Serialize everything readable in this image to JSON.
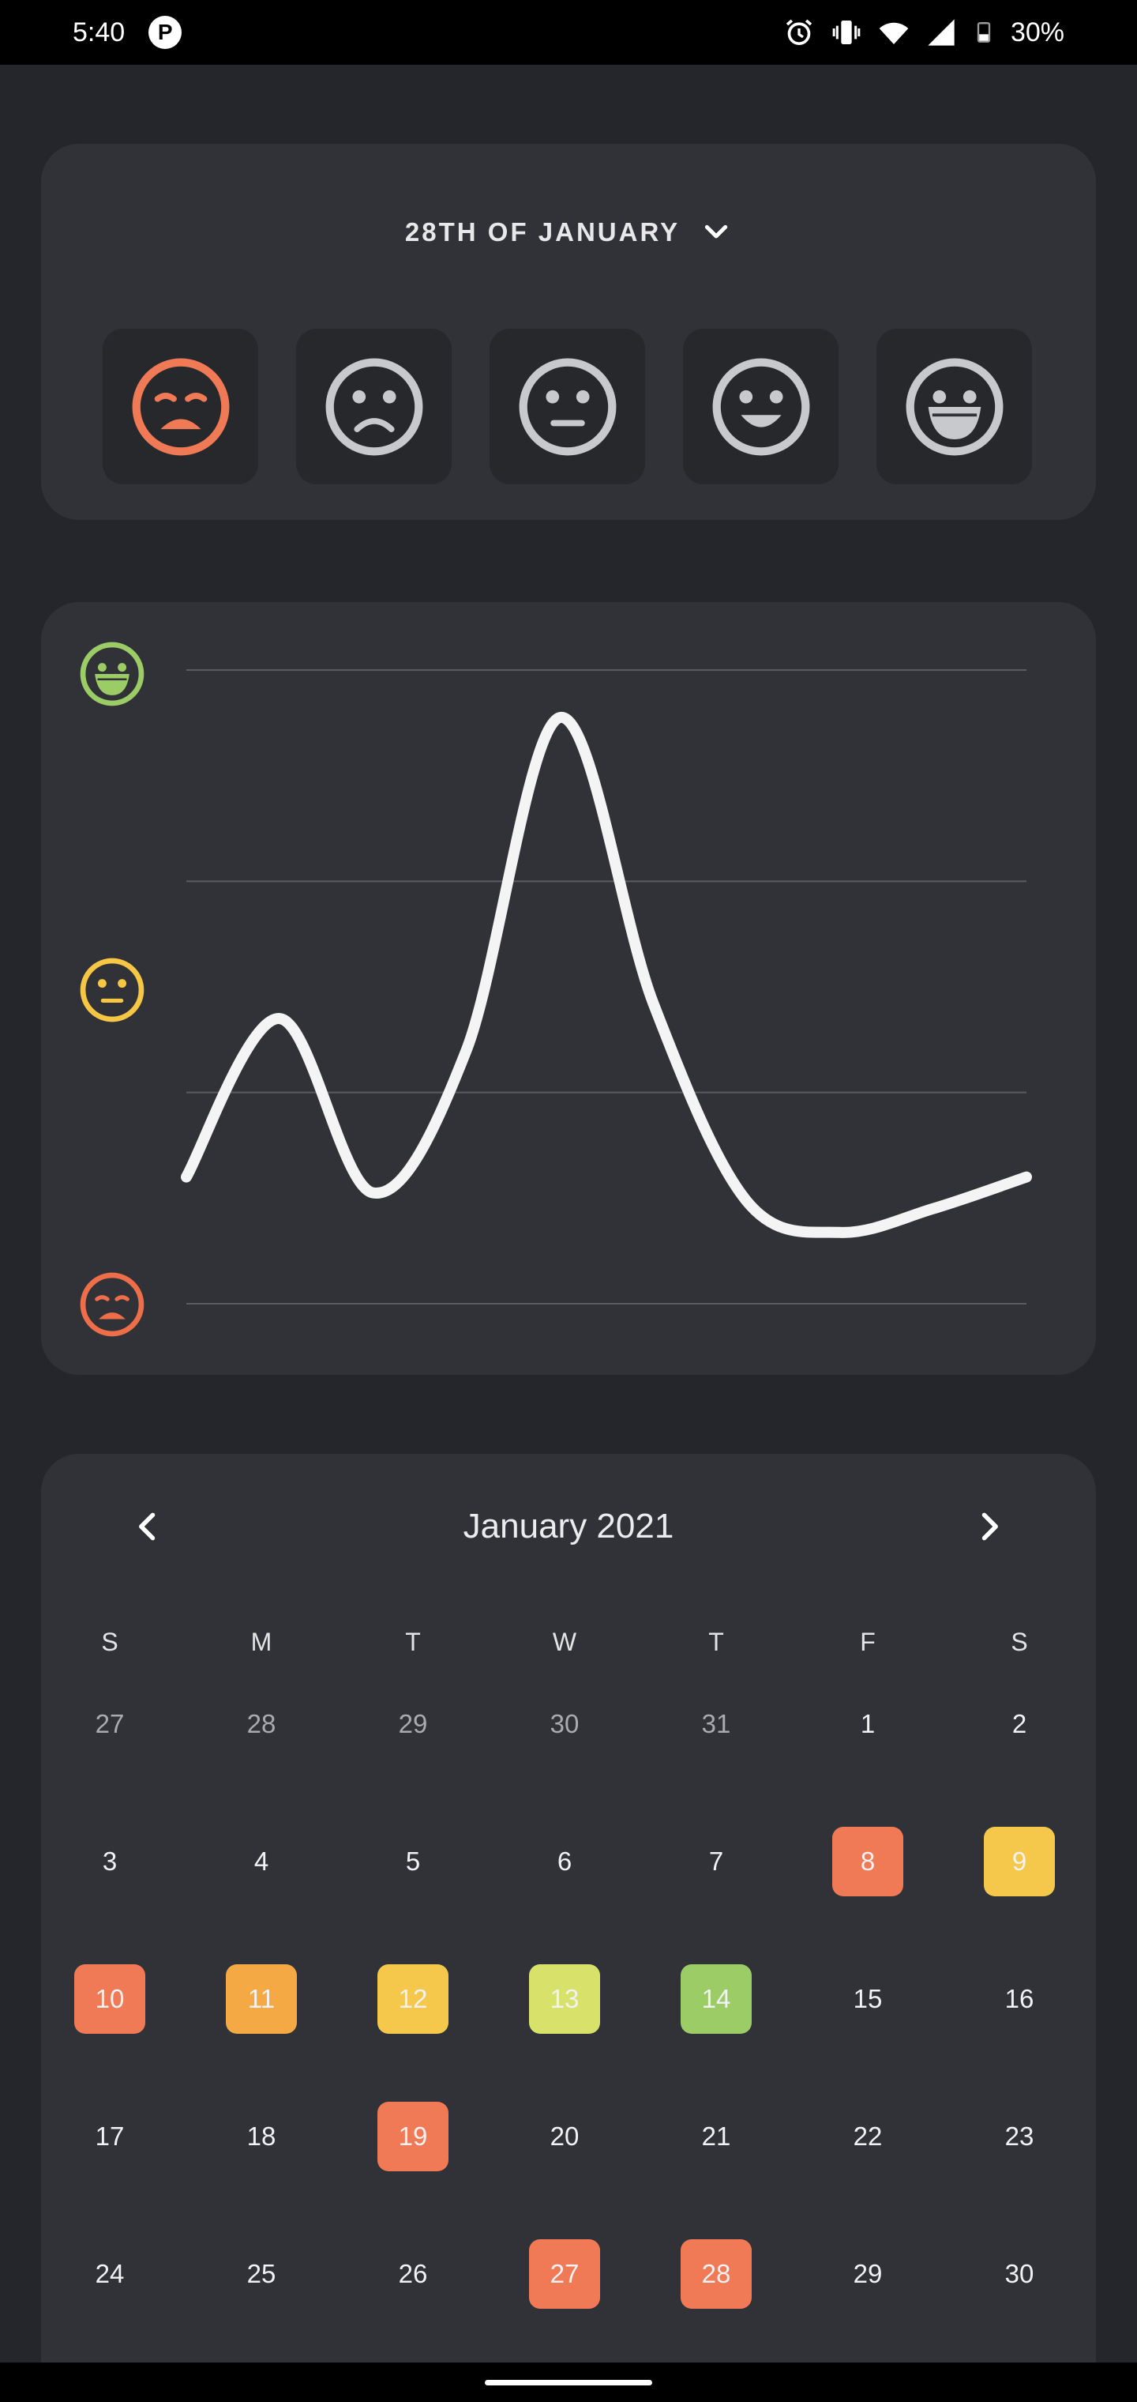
{
  "status_bar": {
    "time": "5:40",
    "app_badge": "P",
    "battery": "30%",
    "icons": [
      "alarm-icon",
      "vibrate-icon",
      "wifi-icon",
      "cell-signal-icon",
      "battery-icon"
    ]
  },
  "mood_picker": {
    "date_label": "28TH OF JANUARY",
    "selected_index": 0,
    "moods": [
      {
        "name": "awful",
        "icon": "awful-face-icon"
      },
      {
        "name": "bad",
        "icon": "sad-face-icon"
      },
      {
        "name": "meh",
        "icon": "neutral-face-icon"
      },
      {
        "name": "good",
        "icon": "smile-face-icon"
      },
      {
        "name": "great",
        "icon": "laugh-face-icon"
      }
    ],
    "colors": {
      "selected": "#f07a55",
      "unselected": "#c8c9cd"
    }
  },
  "chart_data": {
    "type": "line",
    "title": "",
    "xlabel": "",
    "ylabel": "",
    "y_icons": [
      "laugh-face-icon",
      "neutral-face-icon",
      "awful-face-icon"
    ],
    "ylim": [
      1,
      5
    ],
    "grid": true,
    "x": [
      1,
      2,
      3,
      4,
      5,
      6,
      7,
      8,
      9,
      10
    ],
    "values": [
      1.8,
      2.8,
      1.7,
      2.6,
      4.7,
      2.9,
      1.65,
      1.45,
      1.6,
      1.8
    ],
    "colors": {
      "line": "#f4f4f4",
      "great": "#9ccc65",
      "meh": "#f6c744",
      "awful": "#ee6e4a"
    }
  },
  "calendar": {
    "month_label": "January  2021",
    "weekdays": [
      "S",
      "M",
      "T",
      "W",
      "T",
      "F",
      "S"
    ],
    "weeks": [
      [
        {
          "d": "27",
          "muted": true
        },
        {
          "d": "28",
          "muted": true
        },
        {
          "d": "29",
          "muted": true
        },
        {
          "d": "30",
          "muted": true
        },
        {
          "d": "31",
          "muted": true
        },
        {
          "d": "1"
        },
        {
          "d": "2"
        }
      ],
      [
        {
          "d": "3"
        },
        {
          "d": "4"
        },
        {
          "d": "5"
        },
        {
          "d": "6"
        },
        {
          "d": "7"
        },
        {
          "d": "8",
          "color": "#f07a55"
        },
        {
          "d": "9",
          "color": "#f5c84c"
        }
      ],
      [
        {
          "d": "10",
          "color": "#f07a55"
        },
        {
          "d": "11",
          "color": "#f4a944"
        },
        {
          "d": "12",
          "color": "#f5c84c"
        },
        {
          "d": "13",
          "color": "#d8e26a"
        },
        {
          "d": "14",
          "color": "#9ccc65"
        },
        {
          "d": "15"
        },
        {
          "d": "16"
        }
      ],
      [
        {
          "d": "17"
        },
        {
          "d": "18"
        },
        {
          "d": "19",
          "color": "#f07a55"
        },
        {
          "d": "20"
        },
        {
          "d": "21"
        },
        {
          "d": "22"
        },
        {
          "d": "23"
        }
      ],
      [
        {
          "d": "24"
        },
        {
          "d": "25"
        },
        {
          "d": "26"
        },
        {
          "d": "27",
          "color": "#f07a55"
        },
        {
          "d": "28",
          "color": "#f07a55"
        },
        {
          "d": "29"
        },
        {
          "d": "30"
        }
      ]
    ]
  }
}
